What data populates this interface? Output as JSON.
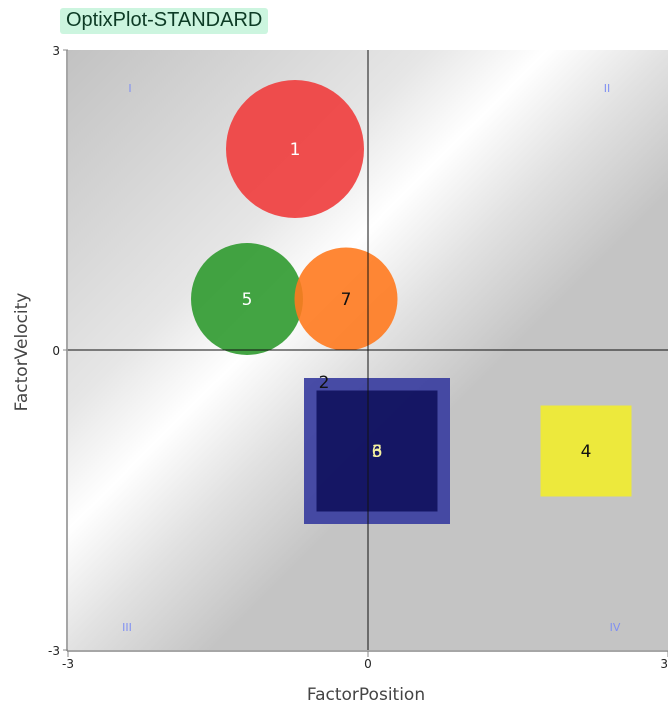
{
  "app": {
    "title": "OptixPlot-STANDARD"
  },
  "chart_data": {
    "type": "scatter",
    "title": "",
    "xlabel": "FactorPosition",
    "ylabel": "FactorVelocity",
    "xlim": [
      -3,
      3
    ],
    "ylim": [
      -3,
      3
    ],
    "x_tick_labels": [
      "-3",
      "0",
      "3"
    ],
    "y_tick_labels": [
      "3",
      "0",
      "-3"
    ],
    "grid": false,
    "crosshair_at_origin": true,
    "quadrant_labels": [
      "I",
      "II",
      "III",
      "IV"
    ],
    "points": [
      {
        "label": "1",
        "shape": "circle",
        "x": -0.73,
        "y": 2.01,
        "size": 1.38,
        "color": "#f03c3c",
        "label_color": "#ffffff"
      },
      {
        "label": "5",
        "shape": "circle",
        "x": -1.21,
        "y": 0.51,
        "size": 1.12,
        "color": "#2f9a2f",
        "label_color": "#ffffff"
      },
      {
        "label": "7",
        "shape": "circle",
        "x": -0.22,
        "y": 0.51,
        "size": 1.03,
        "color": "#ff7a1f",
        "label_color": "#111111"
      },
      {
        "label": "2",
        "shape": "square",
        "x": 0.09,
        "y": -1.01,
        "size": 1.46,
        "color": "#3a3ea0",
        "label_color": "#111111"
      },
      {
        "label": "3",
        "shape": "square",
        "x": 0.09,
        "y": -1.01,
        "size": 1.21,
        "color": "#11125e",
        "label_color": "#f5f0a0"
      },
      {
        "label": "6",
        "shape": "square",
        "x": 0.09,
        "y": -1.01,
        "size": 0.0,
        "color": "#11125e",
        "label_color": "#f5f0a0"
      },
      {
        "label": "4",
        "shape": "square",
        "x": 2.18,
        "y": -1.01,
        "size": 0.91,
        "color": "#f0ec30",
        "label_color": "#111111"
      }
    ]
  }
}
